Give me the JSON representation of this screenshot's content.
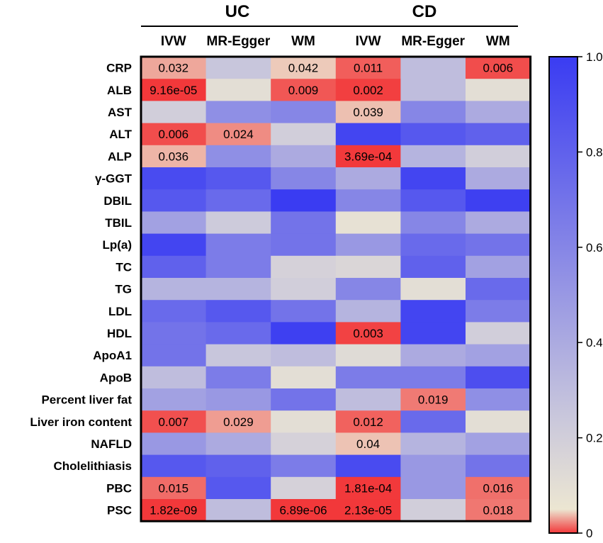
{
  "chart_data": {
    "type": "heatmap",
    "title": "",
    "groups": [
      {
        "name": "UC",
        "columns": [
          "IVW",
          "MR-Egger",
          "WM"
        ]
      },
      {
        "name": "CD",
        "columns": [
          "IVW",
          "MR-Egger",
          "WM"
        ]
      }
    ],
    "rows": [
      "CRP",
      "ALB",
      "AST",
      "ALT",
      "ALP",
      "γ-GGT",
      "DBIL",
      "TBIL",
      "Lp(a)",
      "TC",
      "TG",
      "LDL",
      "HDL",
      "ApoA1",
      "ApoB",
      "Percent liver fat",
      "Liver iron content",
      "NAFLD",
      "Cholelithiasis",
      "PBC",
      "PSC"
    ],
    "values": [
      [
        0.032,
        0.25,
        0.042,
        0.011,
        0.3,
        0.006
      ],
      [
        9.16e-05,
        0.1,
        0.009,
        0.002,
        0.3,
        0.1
      ],
      [
        0.2,
        0.55,
        0.6,
        0.039,
        0.6,
        0.4
      ],
      [
        0.006,
        0.024,
        0.2,
        0.95,
        0.85,
        0.8
      ],
      [
        0.036,
        0.55,
        0.4,
        0.000369,
        0.35,
        0.2
      ],
      [
        0.92,
        0.85,
        0.6,
        0.4,
        0.95,
        0.4
      ],
      [
        0.85,
        0.75,
        1.0,
        0.6,
        0.85,
        0.98
      ],
      [
        0.45,
        0.22,
        0.7,
        0.08,
        0.6,
        0.4
      ],
      [
        0.95,
        0.65,
        0.7,
        0.5,
        0.75,
        0.7
      ],
      [
        0.8,
        0.65,
        0.18,
        0.15,
        0.8,
        0.45
      ],
      [
        0.35,
        0.35,
        0.2,
        0.6,
        0.1,
        0.75
      ],
      [
        0.75,
        0.85,
        0.7,
        0.35,
        0.95,
        0.65
      ],
      [
        0.7,
        0.75,
        0.98,
        0.003,
        0.95,
        0.2
      ],
      [
        0.7,
        0.25,
        0.3,
        0.12,
        0.4,
        0.45
      ],
      [
        0.3,
        0.65,
        0.1,
        0.65,
        0.65,
        0.9
      ],
      [
        0.45,
        0.5,
        0.7,
        0.3,
        0.019,
        0.55
      ],
      [
        0.007,
        0.029,
        0.1,
        0.012,
        0.75,
        0.1
      ],
      [
        0.5,
        0.4,
        0.18,
        0.04,
        0.35,
        0.45
      ],
      [
        0.85,
        0.8,
        0.65,
        0.92,
        0.5,
        0.7
      ],
      [
        0.015,
        0.85,
        0.18,
        0.000181,
        0.5,
        0.016
      ],
      [
        1.82e-09,
        0.3,
        6.89e-06,
        2.13e-05,
        0.2,
        0.018
      ]
    ],
    "labels": [
      [
        "0.032",
        "",
        "0.042",
        "0.011",
        "",
        "0.006"
      ],
      [
        "9.16e-05",
        "",
        "0.009",
        "0.002",
        "",
        ""
      ],
      [
        "",
        "",
        "",
        "0.039",
        "",
        ""
      ],
      [
        "0.006",
        "0.024",
        "",
        "",
        "",
        ""
      ],
      [
        "0.036",
        "",
        "",
        "3.69e-04",
        "",
        ""
      ],
      [
        "",
        "",
        "",
        "",
        "",
        ""
      ],
      [
        "",
        "",
        "",
        "",
        "",
        ""
      ],
      [
        "",
        "",
        "",
        "",
        "",
        ""
      ],
      [
        "",
        "",
        "",
        "",
        "",
        ""
      ],
      [
        "",
        "",
        "",
        "",
        "",
        ""
      ],
      [
        "",
        "",
        "",
        "",
        "",
        ""
      ],
      [
        "",
        "",
        "",
        "",
        "",
        ""
      ],
      [
        "",
        "",
        "",
        "0.003",
        "",
        ""
      ],
      [
        "",
        "",
        "",
        "",
        "",
        ""
      ],
      [
        "",
        "",
        "",
        "",
        "",
        ""
      ],
      [
        "",
        "",
        "",
        "",
        "0.019",
        ""
      ],
      [
        "0.007",
        "0.029",
        "",
        "0.012",
        "",
        ""
      ],
      [
        "",
        "",
        "",
        "0.04",
        "",
        ""
      ],
      [
        "",
        "",
        "",
        "",
        "",
        ""
      ],
      [
        "0.015",
        "",
        "",
        "1.81e-04",
        "",
        "0.016"
      ],
      [
        "1.82e-09",
        "",
        "6.89e-06",
        "2.13e-05",
        "",
        "0.018"
      ]
    ],
    "colorbar": {
      "range": [
        0,
        1
      ],
      "ticks": [
        0,
        0.2,
        0.4,
        0.6,
        0.8,
        1.0
      ],
      "tick_labels": [
        "0",
        "0.2",
        "0.4",
        "0.6",
        "0.8",
        "1.0"
      ],
      "colors": {
        "low": "#f2383a",
        "mid": "#ece6d2",
        "mid_cool": "#c8c6dc",
        "high": "#3a3cf2"
      }
    }
  }
}
